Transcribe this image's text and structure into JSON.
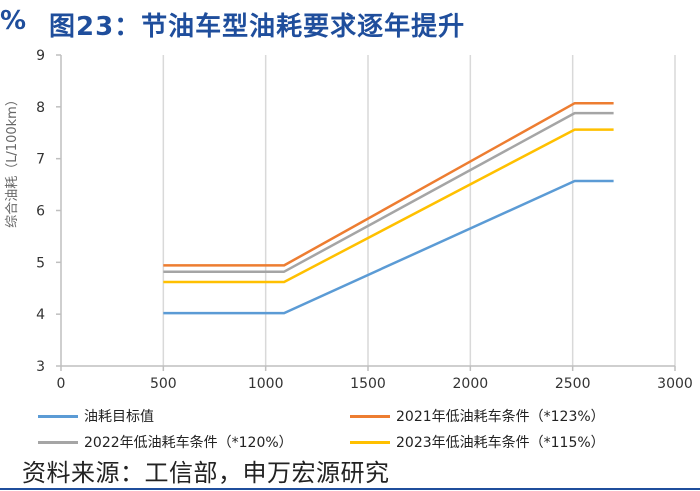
{
  "header": {
    "figure_marker": "%",
    "title": "图23：节油车型油耗要求逐年提升"
  },
  "chart_data": {
    "type": "line",
    "title": "图23：节油车型油耗要求逐年提升",
    "xlabel": "",
    "ylabel": "综合油耗（L/100km）",
    "xlim": [
      0,
      3000
    ],
    "ylim": [
      3,
      9
    ],
    "xticks": [
      0,
      500,
      1000,
      1500,
      2000,
      2500,
      3000
    ],
    "yticks": [
      3,
      4,
      5,
      6,
      7,
      8,
      9
    ],
    "grid": "vertical",
    "legend_position": "bottom",
    "series": [
      {
        "name": "油耗目标值",
        "color": "#5b9bd5",
        "points": [
          [
            500,
            4.02
          ],
          [
            1090,
            4.02
          ],
          [
            2510,
            6.57
          ],
          [
            2700,
            6.57
          ]
        ]
      },
      {
        "name": "2021年低油耗车条件（*123%）",
        "color": "#ed7d31",
        "points": [
          [
            500,
            4.94
          ],
          [
            1090,
            4.94
          ],
          [
            2510,
            8.07
          ],
          [
            2700,
            8.07
          ]
        ]
      },
      {
        "name": "2022年低油耗车条件（*120%）",
        "color": "#a5a5a5",
        "points": [
          [
            500,
            4.82
          ],
          [
            1090,
            4.82
          ],
          [
            2510,
            7.88
          ],
          [
            2700,
            7.88
          ]
        ]
      },
      {
        "name": "2023年低油耗车条件（*115%）",
        "color": "#ffc000",
        "points": [
          [
            500,
            4.62
          ],
          [
            1090,
            4.62
          ],
          [
            2510,
            7.56
          ],
          [
            2700,
            7.56
          ]
        ]
      }
    ]
  },
  "legend": {
    "items": [
      {
        "label": "油耗目标值",
        "color": "#5b9bd5"
      },
      {
        "label": "2021年低油耗车条件（*123%）",
        "color": "#ed7d31"
      },
      {
        "label": "2022年低油耗车条件（*120%）",
        "color": "#a5a5a5"
      },
      {
        "label": "2023年低油耗车条件（*115%）",
        "color": "#ffc000"
      }
    ]
  },
  "source": "资料来源：工信部，申万宏源研究"
}
